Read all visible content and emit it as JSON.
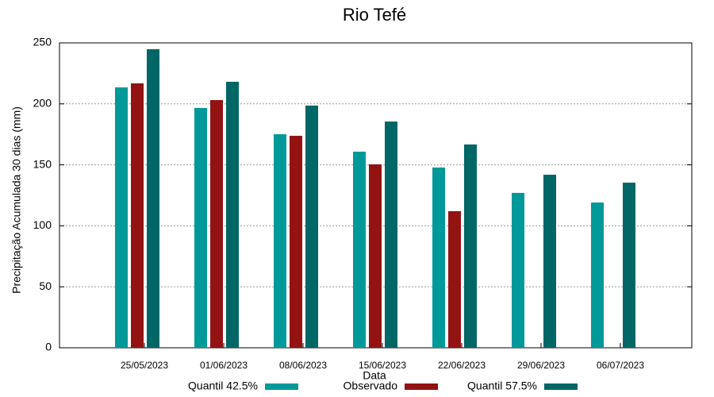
{
  "chart_data": {
    "type": "bar",
    "title": "Rio Tefé",
    "x_label": "Data",
    "y_label": "Precipitação Acumulada 30 dias (mm)",
    "categories": [
      "25/05/2023",
      "01/06/2023",
      "08/06/2023",
      "15/06/2023",
      "22/06/2023",
      "29/06/2023",
      "06/07/2023"
    ],
    "series": [
      {
        "name": "Quantil 42.5%",
        "color": "#009999",
        "values": [
          213.5,
          196.6,
          175.1,
          160.8,
          147.8,
          127.0,
          119.1
        ]
      },
      {
        "name": "Observado",
        "color": "#931212",
        "values": [
          216.8,
          203.1,
          173.8,
          150.4,
          112.0,
          null,
          null
        ]
      },
      {
        "name": "Quantil 57.5%",
        "color": "#006666",
        "values": [
          244.8,
          218.1,
          198.6,
          185.5,
          166.7,
          141.9,
          135.4
        ]
      }
    ],
    "ylim": [
      0,
      250
    ],
    "yticks": [
      0,
      50,
      100,
      150,
      200,
      250
    ],
    "grid": true,
    "legend": "bottom"
  }
}
